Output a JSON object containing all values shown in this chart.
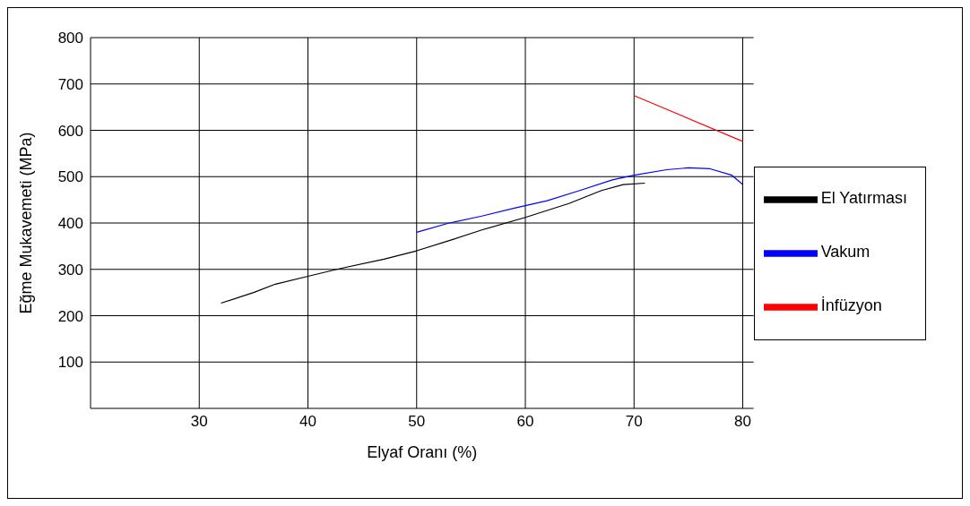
{
  "chart_data": {
    "type": "line",
    "xlabel": "Elyaf Oranı (%)",
    "ylabel": "Eğme Mukavemeti (MPa)",
    "xlim": [
      20,
      81
    ],
    "xticks": [
      30,
      40,
      50,
      60,
      70,
      80
    ],
    "ylim": [
      0,
      800
    ],
    "yticks": [
      100,
      200,
      300,
      400,
      500,
      600,
      700,
      800
    ],
    "grid": true,
    "legend": "right",
    "marker": "none",
    "series": [
      {
        "name": "El Yatırması",
        "color": "#000000",
        "x": [
          32,
          35,
          37,
          40,
          43,
          47,
          50,
          53,
          56,
          60,
          64,
          67,
          69,
          71
        ],
        "values": [
          227,
          250,
          268,
          285,
          302,
          322,
          340,
          362,
          385,
          412,
          442,
          470,
          483,
          486
        ]
      },
      {
        "name": "Vakum",
        "color": "#0000ff",
        "x": [
          50,
          53,
          56,
          59,
          62,
          65,
          68,
          70,
          73,
          75,
          77,
          79,
          80
        ],
        "values": [
          380,
          400,
          415,
          432,
          448,
          470,
          493,
          503,
          515,
          519,
          517,
          503,
          483
        ]
      },
      {
        "name": "İnfüzyon",
        "color": "#ff0000",
        "x": [
          70,
          80
        ],
        "values": [
          675,
          576
        ]
      }
    ]
  }
}
